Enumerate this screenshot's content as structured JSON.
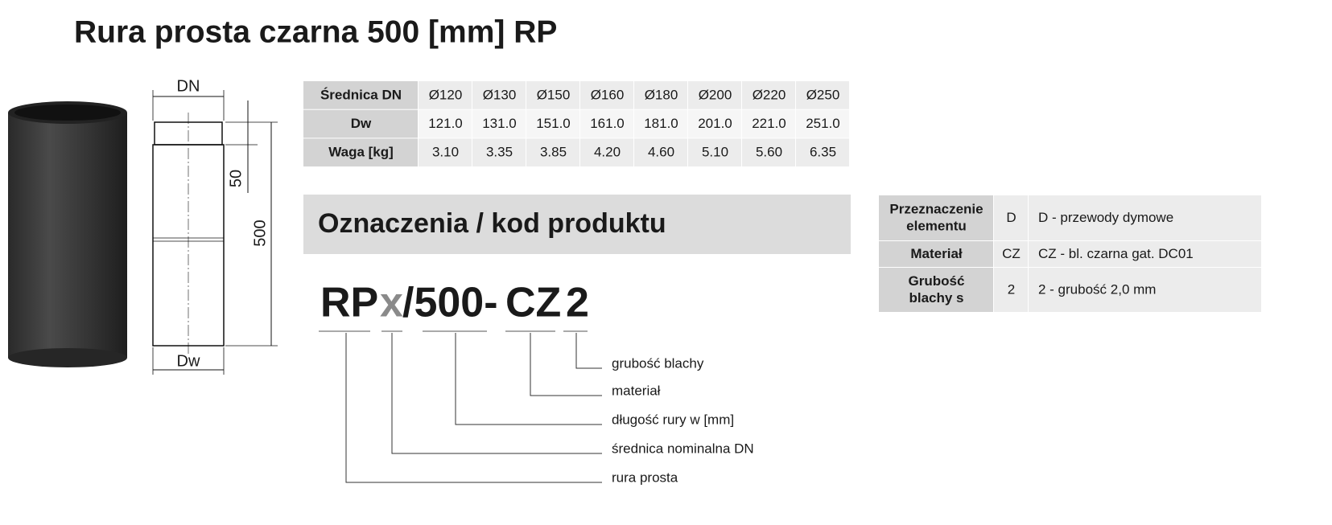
{
  "title": "Rura prosta czarna 500 [mm] RP",
  "drawing": {
    "dn": "DN",
    "dim_50": "50",
    "dim_500": "500",
    "dw": "Dw"
  },
  "table": {
    "rows": [
      [
        "Średnica DN",
        "Ø120",
        "Ø130",
        "Ø150",
        "Ø160",
        "Ø180",
        "Ø200",
        "Ø220",
        "Ø250"
      ],
      [
        "Dw",
        "121.0",
        "131.0",
        "151.0",
        "161.0",
        "181.0",
        "201.0",
        "221.0",
        "251.0"
      ],
      [
        "Waga [kg]",
        "3.10",
        "3.35",
        "3.85",
        "4.20",
        "4.60",
        "5.10",
        "5.60",
        "6.35"
      ]
    ]
  },
  "section_heading": "Oznaczenia / kod produktu",
  "code": {
    "parts": [
      "RP",
      "x",
      "/500-",
      "CZ",
      "2"
    ],
    "legend": [
      "grubość blachy",
      "materiał",
      "długość rury w [mm]",
      "średnica nominalna DN",
      "rura prosta"
    ]
  },
  "spec_table": {
    "rows": [
      [
        [
          "Przeznaczenie",
          "elementu"
        ],
        "D",
        "D - przewody dymowe"
      ],
      [
        [
          "Materiał"
        ],
        "CZ",
        "CZ - bl. czarna gat. DC01"
      ],
      [
        [
          "Grubość",
          "blachy s"
        ],
        "2",
        "2 - grubość 2,0 mm"
      ]
    ]
  }
}
